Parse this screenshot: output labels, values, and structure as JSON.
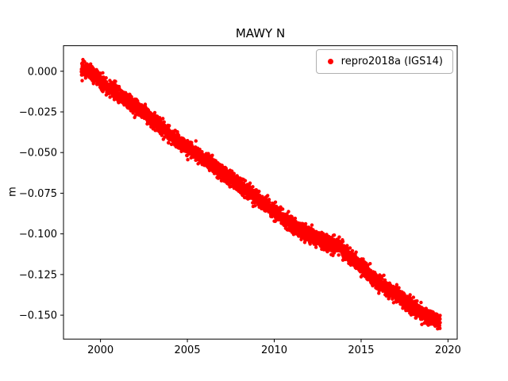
{
  "title": "MAWY N",
  "colors": {
    "points": "#ff0000",
    "axis": "#000000",
    "background": "#ffffff",
    "legend_border": "#b0b0b0"
  },
  "legend": {
    "label": "repro2018a (IGS14)",
    "marker_color": "#ff0000"
  },
  "chart_data": {
    "type": "scatter",
    "title": "MAWY N",
    "xlabel": "",
    "ylabel": "m",
    "xlim": [
      1997.87,
      2020.53
    ],
    "ylim": [
      -0.1647,
      0.0157
    ],
    "grid": false,
    "x_ticks": [
      2000,
      2005,
      2010,
      2015,
      2020
    ],
    "x_tick_labels": [
      "2000",
      "2005",
      "2010",
      "2015",
      "2020"
    ],
    "y_ticks": [
      0.0,
      -0.025,
      -0.05,
      -0.075,
      -0.1,
      -0.125,
      -0.15
    ],
    "y_tick_labels": [
      "0.000",
      "−0.025",
      "−0.050",
      "−0.075",
      "−0.100",
      "−0.125",
      "−0.150"
    ],
    "legend_position": "upper right",
    "legend_entries": [
      {
        "label": "repro2018a (IGS14)",
        "color": "#ff0000",
        "marker": "dot"
      }
    ],
    "series": [
      {
        "name": "repro2018a (IGS14)",
        "color": "#ff0000",
        "marker": "dot",
        "marker_radius_px": 2.2,
        "x_start": 1998.9,
        "x_end": 2019.55,
        "n_points": 4200,
        "noise_std": 0.0023,
        "seed": 42,
        "trend_anchors": [
          [
            1998.9,
            0.002
          ],
          [
            1999.3,
            0.0
          ],
          [
            2000.0,
            -0.006
          ],
          [
            2001.0,
            -0.014
          ],
          [
            2002.0,
            -0.022
          ],
          [
            2003.0,
            -0.03
          ],
          [
            2004.0,
            -0.039
          ],
          [
            2005.0,
            -0.047
          ],
          [
            2006.0,
            -0.0545
          ],
          [
            2007.0,
            -0.062
          ],
          [
            2008.0,
            -0.07
          ],
          [
            2009.0,
            -0.078
          ],
          [
            2010.0,
            -0.0865
          ],
          [
            2011.0,
            -0.094
          ],
          [
            2012.0,
            -0.1005
          ],
          [
            2012.7,
            -0.104
          ],
          [
            2013.3,
            -0.1065
          ],
          [
            2013.8,
            -0.108
          ],
          [
            2014.3,
            -0.1135
          ],
          [
            2015.0,
            -0.1205
          ],
          [
            2016.0,
            -0.1295
          ],
          [
            2017.0,
            -0.1375
          ],
          [
            2018.0,
            -0.1455
          ],
          [
            2019.0,
            -0.152
          ],
          [
            2019.55,
            -0.1545
          ]
        ]
      }
    ]
  }
}
